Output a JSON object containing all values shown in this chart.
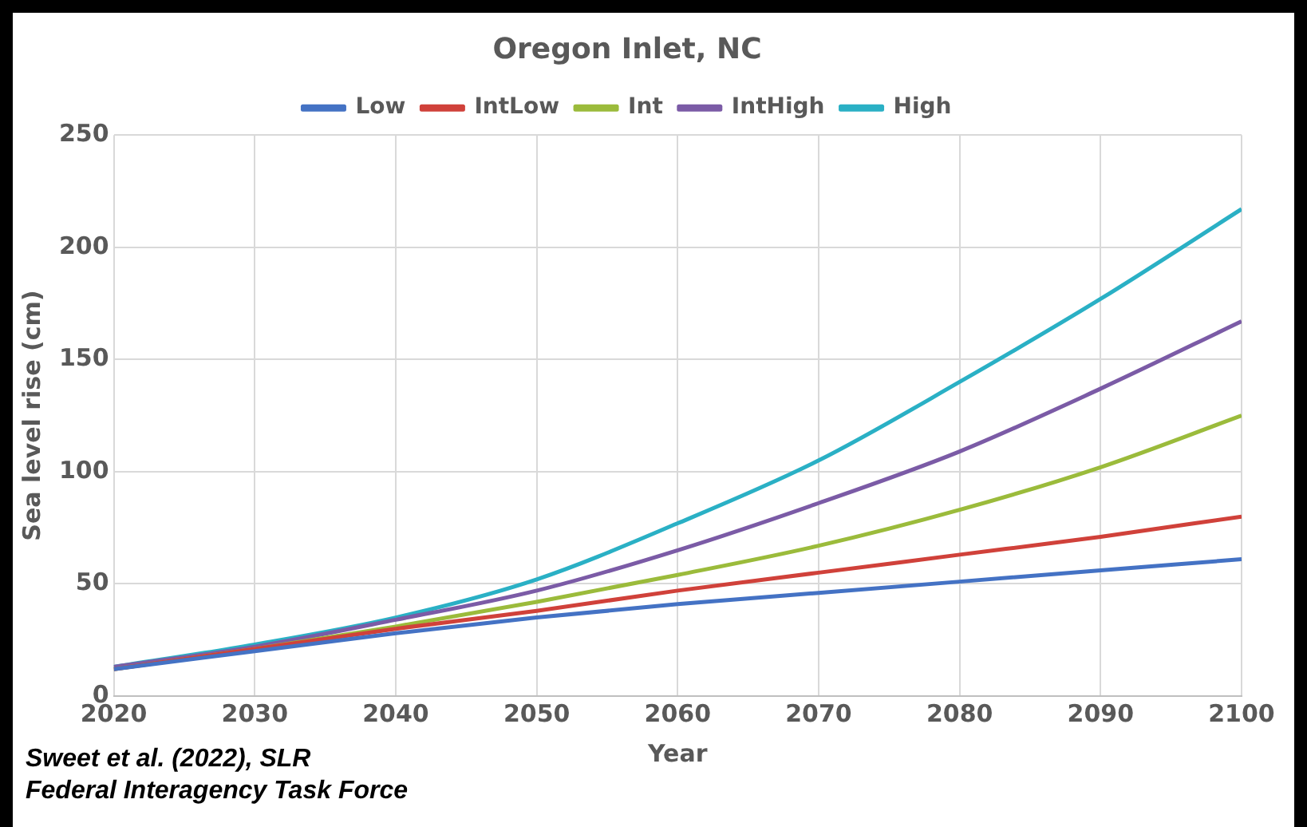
{
  "chart_data": {
    "type": "line",
    "title": "Oregon Inlet, NC",
    "xlabel": "Year",
    "ylabel": "Sea level rise (cm)",
    "x": [
      2020,
      2030,
      2040,
      2050,
      2060,
      2070,
      2080,
      2090,
      2100
    ],
    "series": [
      {
        "name": "Low",
        "color": "#4472c4",
        "values": [
          12,
          20,
          28,
          35,
          41,
          46,
          51,
          56,
          61
        ]
      },
      {
        "name": "IntLow",
        "color": "#d0413a",
        "values": [
          12,
          21,
          30,
          38,
          47,
          55,
          63,
          71,
          80
        ]
      },
      {
        "name": "Int",
        "color": "#9bbb3b",
        "values": [
          12,
          21,
          31,
          42,
          54,
          67,
          83,
          102,
          125
        ]
      },
      {
        "name": "IntHigh",
        "color": "#7b5ba6",
        "values": [
          13,
          22,
          34,
          47,
          65,
          86,
          109,
          137,
          167
        ]
      },
      {
        "name": "High",
        "color": "#2ab0c5",
        "values": [
          13,
          23,
          35,
          52,
          77,
          105,
          140,
          177,
          217
        ]
      }
    ],
    "xlim": [
      2020,
      2100
    ],
    "xticks": [
      2020,
      2030,
      2040,
      2050,
      2060,
      2070,
      2080,
      2090,
      2100
    ],
    "ylim": [
      0,
      250
    ],
    "yticks": [
      0,
      50,
      100,
      150,
      200,
      250
    ],
    "grid": true,
    "legend": "top",
    "marker": "none",
    "line_style": "solid",
    "annotations": [
      "Sweet et al. (2022), SLR Federal Interagency Task Force"
    ]
  }
}
